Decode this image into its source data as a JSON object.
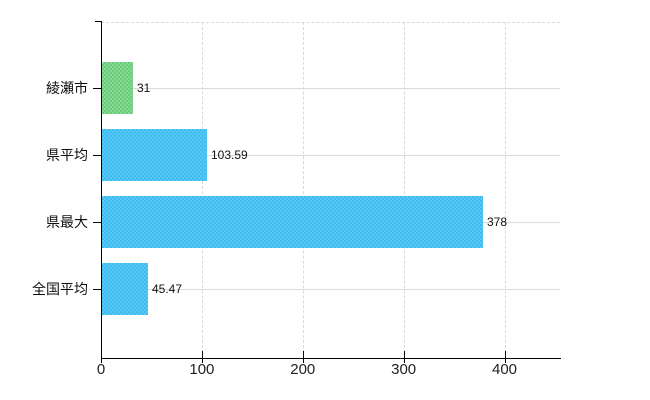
{
  "chart_data": {
    "type": "bar",
    "orientation": "horizontal",
    "title": "",
    "xlabel": "",
    "ylabel": "",
    "categories": [
      "綾瀬市",
      "県平均",
      "県最大",
      "全国平均"
    ],
    "values": [
      31,
      103.59,
      378,
      45.47
    ],
    "value_labels": [
      "31",
      "103.59",
      "378",
      "45.47"
    ],
    "bar_color_keys": [
      "green",
      "blue",
      "blue",
      "blue"
    ],
    "x_ticks": [
      0,
      100,
      200,
      300,
      400
    ],
    "x_tick_labels": [
      "0",
      "100",
      "200",
      "300",
      "400"
    ],
    "xlim": [
      0,
      455
    ],
    "grid": {
      "vertical": "dashed light gray at each x tick",
      "horizontal": "solid light gray at each category center",
      "top_border": "dashed light gray"
    },
    "legend": null
  },
  "colors": {
    "green": {
      "base": "#69cd78",
      "alt": "#87d994",
      "avg": "#77d286"
    },
    "blue": {
      "base": "#3cbcef",
      "alt": "#5ac8f4",
      "avg": "#4bc2f1"
    },
    "axis": "#000000",
    "grid_vertical": "#d9d9d9",
    "grid_horizontal": "#d6ded6",
    "text": "#111111"
  }
}
